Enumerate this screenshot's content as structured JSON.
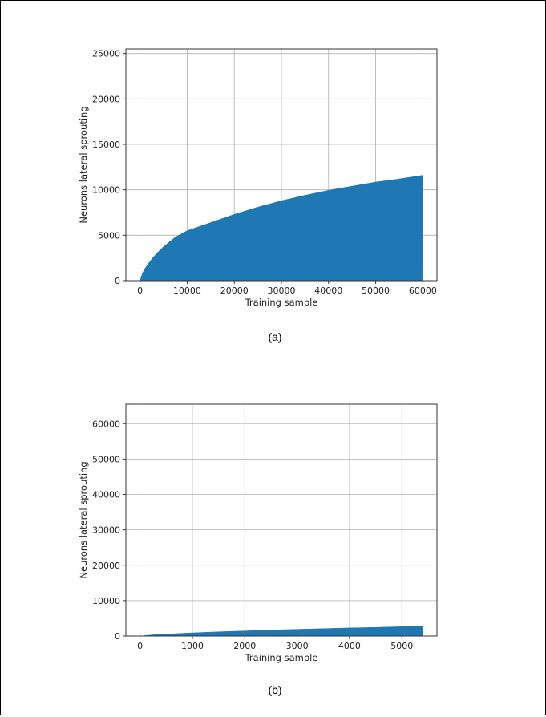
{
  "captions": [
    "(a)",
    "(b)"
  ],
  "colors": {
    "fill": "#1f77b4",
    "grid": "#b0b0b0",
    "axis": "#333333"
  },
  "chart_data": [
    {
      "type": "area",
      "xlabel": "Training sample",
      "ylabel": "Neurons lateral sprouting",
      "xlim": [
        -3000,
        63000
      ],
      "ylim": [
        0,
        25500
      ],
      "xticks": [
        0,
        10000,
        20000,
        30000,
        40000,
        50000,
        60000
      ],
      "yticks": [
        0,
        5000,
        10000,
        15000,
        20000,
        25000
      ],
      "grid": true,
      "series": [
        {
          "x": [
            0,
            500,
            1000,
            2000,
            3000,
            4000,
            5000,
            7500,
            10000,
            15000,
            20000,
            25000,
            30000,
            35000,
            40000,
            45000,
            50000,
            55000,
            60000
          ],
          "y": [
            0,
            800,
            1300,
            2050,
            2700,
            3250,
            3750,
            4800,
            5500,
            6400,
            7300,
            8100,
            8800,
            9400,
            9950,
            10400,
            10850,
            11200,
            11600
          ]
        }
      ]
    },
    {
      "type": "area",
      "xlabel": "Training sample",
      "ylabel": "Neurons lateral sprouting",
      "xlim": [
        -270,
        5670
      ],
      "ylim": [
        0,
        65500
      ],
      "xticks": [
        0,
        1000,
        2000,
        3000,
        4000,
        5000
      ],
      "yticks": [
        0,
        10000,
        20000,
        30000,
        40000,
        50000,
        60000
      ],
      "grid": true,
      "series": [
        {
          "x": [
            0,
            250,
            500,
            1000,
            1500,
            2000,
            2500,
            3000,
            3500,
            4000,
            4500,
            5000,
            5400
          ],
          "y": [
            0,
            350,
            550,
            900,
            1200,
            1450,
            1700,
            1900,
            2100,
            2300,
            2450,
            2650,
            2800
          ]
        }
      ]
    }
  ]
}
